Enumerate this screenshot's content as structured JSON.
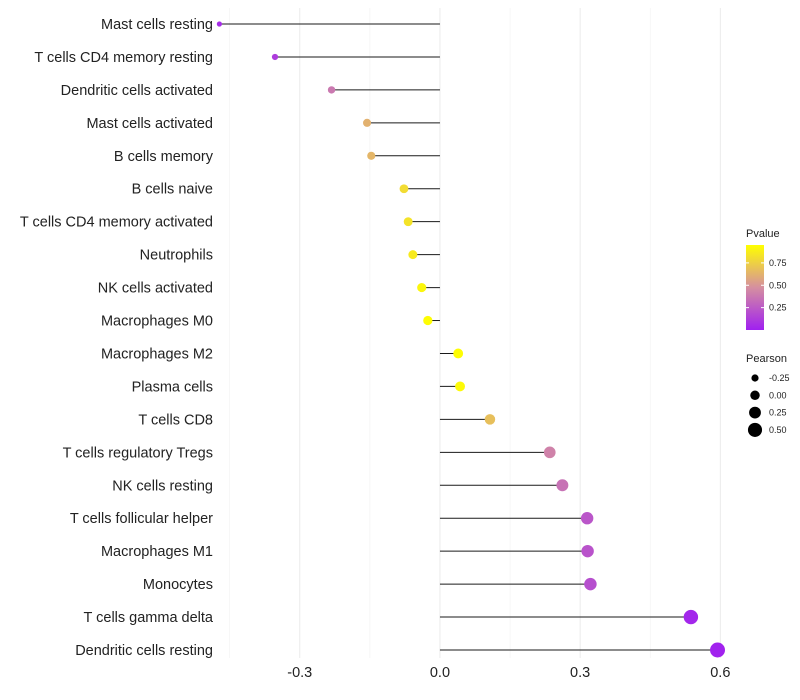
{
  "chart_data": {
    "type": "lollipop",
    "title": "",
    "xlabel": "",
    "ylabel": "",
    "xlim": [
      -0.46,
      0.61
    ],
    "x_ticks": [
      -0.3,
      0.0,
      0.3,
      0.6
    ],
    "x_tick_labels": [
      "-0.3",
      "0.0",
      "0.3",
      "0.6"
    ],
    "grid": true,
    "categories": [
      "Mast cells resting",
      "T cells CD4 memory resting",
      "Dendritic cells activated",
      "Mast cells activated",
      "B cells memory",
      "B cells naive",
      "T cells CD4 memory activated",
      "Neutrophils",
      "NK cells activated",
      "Macrophages M0",
      "Macrophages M2",
      "Plasma cells",
      "T cells CD8",
      "T cells regulatory  Tregs",
      "NK cells resting",
      "T cells follicular helper",
      "Macrophages M1",
      "Monocytes",
      "T cells gamma delta",
      "Dendritic cells resting"
    ],
    "pearson": [
      -0.472,
      -0.353,
      -0.232,
      -0.156,
      -0.147,
      -0.077,
      -0.068,
      -0.058,
      -0.039,
      -0.026,
      0.039,
      0.043,
      0.107,
      0.235,
      0.262,
      0.315,
      0.316,
      0.322,
      0.537,
      0.594
    ],
    "pvalue": [
      0.05,
      0.12,
      0.38,
      0.62,
      0.64,
      0.8,
      0.83,
      0.86,
      0.91,
      0.94,
      0.94,
      0.93,
      0.68,
      0.42,
      0.35,
      0.23,
      0.22,
      0.2,
      0.03,
      0.01
    ],
    "legend_color": {
      "title": "Pvalue",
      "ticks": [
        0.25,
        0.5,
        0.75
      ],
      "tick_labels": [
        "0.25",
        "0.50",
        "0.75"
      ],
      "range": [
        0.0,
        0.95
      ],
      "color_low": "#a020f0",
      "color_mid": "#d58fa0",
      "color_high": "#ffff00"
    },
    "legend_size": {
      "title": "Pearson",
      "values": [
        -0.25,
        0.0,
        0.25,
        0.5
      ],
      "labels": [
        "-0.25",
        "0.00",
        "0.25",
        "0.50"
      ]
    },
    "legend_position": "right"
  }
}
